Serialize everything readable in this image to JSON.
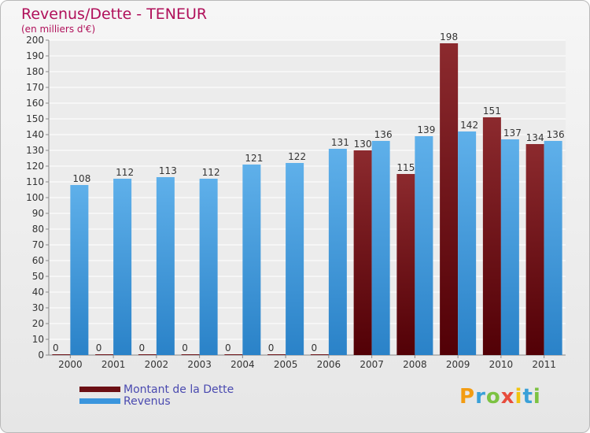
{
  "title": "Revenus/Dette - TENEUR",
  "subtitle": "(en milliers d'€)",
  "brand": {
    "text": "Proxiti",
    "letters": [
      "P",
      "r",
      "o",
      "x",
      "i",
      "t",
      "i"
    ],
    "colors": [
      "#f39c12",
      "#3aa0d8",
      "#7cc242",
      "#e74c3c",
      "#f1c40f",
      "#3aa0d8",
      "#7cc242"
    ]
  },
  "colors": {
    "dette": "#6b0f14",
    "revenus": "#3a95dd",
    "title": "#b0105a"
  },
  "chart_data": {
    "type": "bar",
    "categories": [
      "2000",
      "2001",
      "2002",
      "2003",
      "2004",
      "2005",
      "2006",
      "2007",
      "2008",
      "2009",
      "2010",
      "2011"
    ],
    "series": [
      {
        "name": "Montant de la Dette",
        "values": [
          0,
          0,
          0,
          0,
          0,
          0,
          0,
          130,
          115,
          198,
          151,
          134
        ]
      },
      {
        "name": "Revenus",
        "values": [
          108,
          112,
          113,
          112,
          121,
          122,
          131,
          136,
          139,
          142,
          137,
          136
        ]
      }
    ],
    "ylim": [
      0,
      200
    ],
    "yticks": [
      0,
      10,
      20,
      30,
      40,
      50,
      60,
      70,
      80,
      90,
      100,
      110,
      120,
      130,
      140,
      150,
      160,
      170,
      180,
      190,
      200
    ],
    "grid": true,
    "legend": "bottom-left"
  }
}
